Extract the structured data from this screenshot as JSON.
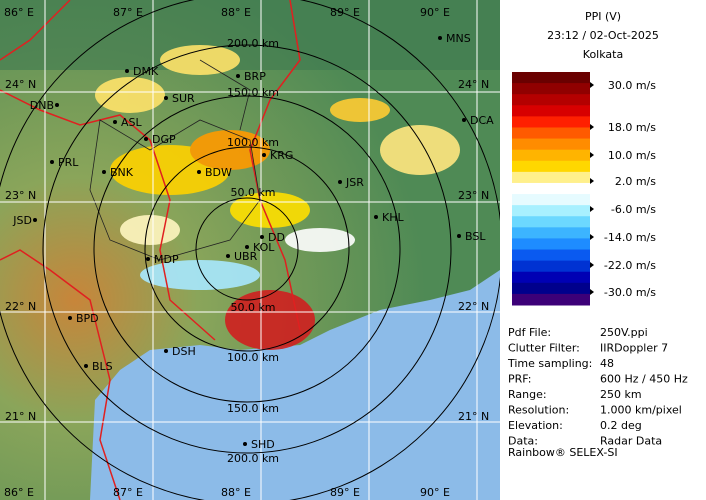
{
  "header": {
    "title": "PPI (V)",
    "time": "23:12 / 02-Oct-2025",
    "station": "Kolkata"
  },
  "legend": {
    "labels": [
      "30.0 m/s",
      "18.0 m/s",
      "10.0 m/s",
      "2.0 m/s",
      "-6.0 m/s",
      "-14.0 m/s",
      "-22.0 m/s",
      "-30.0 m/s"
    ]
  },
  "info": {
    "rows": [
      [
        "Pdf File:",
        "250V.ppi"
      ],
      [
        "Clutter Filter:",
        "IIRDoppler 7"
      ],
      [
        "Time sampling:",
        "48"
      ],
      [
        "PRF:",
        "600 Hz / 450 Hz"
      ],
      [
        "Range:",
        "250 km"
      ],
      [
        "Resolution:",
        "1.000 km/pixel"
      ],
      [
        "Elevation:",
        "0.2 deg"
      ],
      [
        "Data:",
        "Radar Data"
      ]
    ]
  },
  "footer": "Rainbow® SELEX-SI",
  "map": {
    "longitudes": [
      "86° E",
      "87° E",
      "88° E",
      "89° E",
      "90° E"
    ],
    "latitudes": [
      "24° N",
      "23° N",
      "22° N",
      "21° N"
    ],
    "ranges_top": [
      "50.0 km",
      "100.0 km",
      "150.0 km",
      "200.0 km"
    ],
    "ranges_bottom": [
      "50.0 km",
      "100.0 km",
      "150.0 km",
      "200.0 km"
    ],
    "places": [
      "MNS",
      "DMK",
      "BRP",
      "DNB",
      "SUR",
      "DCA",
      "ASL",
      "DGP",
      "PRL",
      "BNK",
      "KRG",
      "BDW",
      "JSR",
      "KHL",
      "JSD",
      "BSL",
      "DD",
      "KOL",
      "MDP",
      "UBR",
      "BPD",
      "DSH",
      "BLS",
      "SHD"
    ]
  }
}
